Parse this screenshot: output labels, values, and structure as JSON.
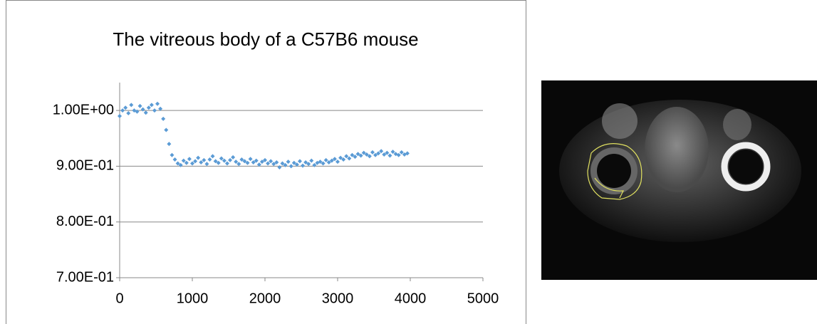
{
  "chart_data": {
    "type": "scatter",
    "title": "The vitreous body of a C57B6 mouse",
    "x": [
      0,
      40,
      80,
      120,
      160,
      200,
      240,
      280,
      320,
      360,
      400,
      440,
      480,
      520,
      560,
      600,
      640,
      680,
      720,
      760,
      800,
      840,
      880,
      920,
      960,
      1000,
      1040,
      1080,
      1120,
      1160,
      1200,
      1240,
      1280,
      1320,
      1360,
      1400,
      1440,
      1480,
      1520,
      1560,
      1600,
      1640,
      1680,
      1720,
      1760,
      1800,
      1840,
      1880,
      1920,
      1960,
      2000,
      2040,
      2080,
      2120,
      2160,
      2200,
      2240,
      2280,
      2320,
      2360,
      2400,
      2440,
      2480,
      2520,
      2560,
      2600,
      2640,
      2680,
      2720,
      2760,
      2800,
      2840,
      2880,
      2920,
      2960,
      3000,
      3040,
      3080,
      3120,
      3160,
      3200,
      3240,
      3280,
      3320,
      3360,
      3400,
      3440,
      3480,
      3520,
      3560,
      3600,
      3640,
      3680,
      3720,
      3760,
      3800,
      3840,
      3880,
      3920,
      3960
    ],
    "series": [
      {
        "color": "#5b9bd5",
        "values": [
          0.99,
          1.0,
          1.005,
          0.995,
          1.01,
          1.0,
          0.998,
          1.008,
          1.002,
          0.996,
          1.005,
          1.01,
          1.0,
          1.012,
          1.003,
          0.985,
          0.965,
          0.94,
          0.92,
          0.912,
          0.905,
          0.902,
          0.91,
          0.906,
          0.913,
          0.905,
          0.909,
          0.915,
          0.907,
          0.911,
          0.904,
          0.912,
          0.918,
          0.909,
          0.906,
          0.914,
          0.91,
          0.905,
          0.911,
          0.916,
          0.908,
          0.904,
          0.912,
          0.909,
          0.906,
          0.913,
          0.907,
          0.91,
          0.903,
          0.908,
          0.911,
          0.905,
          0.909,
          0.904,
          0.907,
          0.898,
          0.905,
          0.902,
          0.908,
          0.9,
          0.906,
          0.903,
          0.909,
          0.901,
          0.907,
          0.904,
          0.91,
          0.902,
          0.906,
          0.908,
          0.905,
          0.911,
          0.907,
          0.91,
          0.913,
          0.908,
          0.915,
          0.912,
          0.918,
          0.914,
          0.92,
          0.917,
          0.922,
          0.919,
          0.924,
          0.921,
          0.918,
          0.925,
          0.92,
          0.923,
          0.927,
          0.921,
          0.924,
          0.919,
          0.926,
          0.922,
          0.92,
          0.925,
          0.921,
          0.923
        ]
      }
    ],
    "xlim": [
      0,
      5000
    ],
    "xticks": [
      0,
      1000,
      2000,
      3000,
      4000,
      5000
    ],
    "ylim": [
      0.7,
      1.05
    ],
    "yticks": [
      {
        "value": 0.7,
        "label": "7.00E-01"
      },
      {
        "value": 0.8,
        "label": "8.00E-01"
      },
      {
        "value": 0.9,
        "label": "9.00E-01"
      },
      {
        "value": 1.0,
        "label": "1.00E+00"
      }
    ],
    "grid": true
  }
}
